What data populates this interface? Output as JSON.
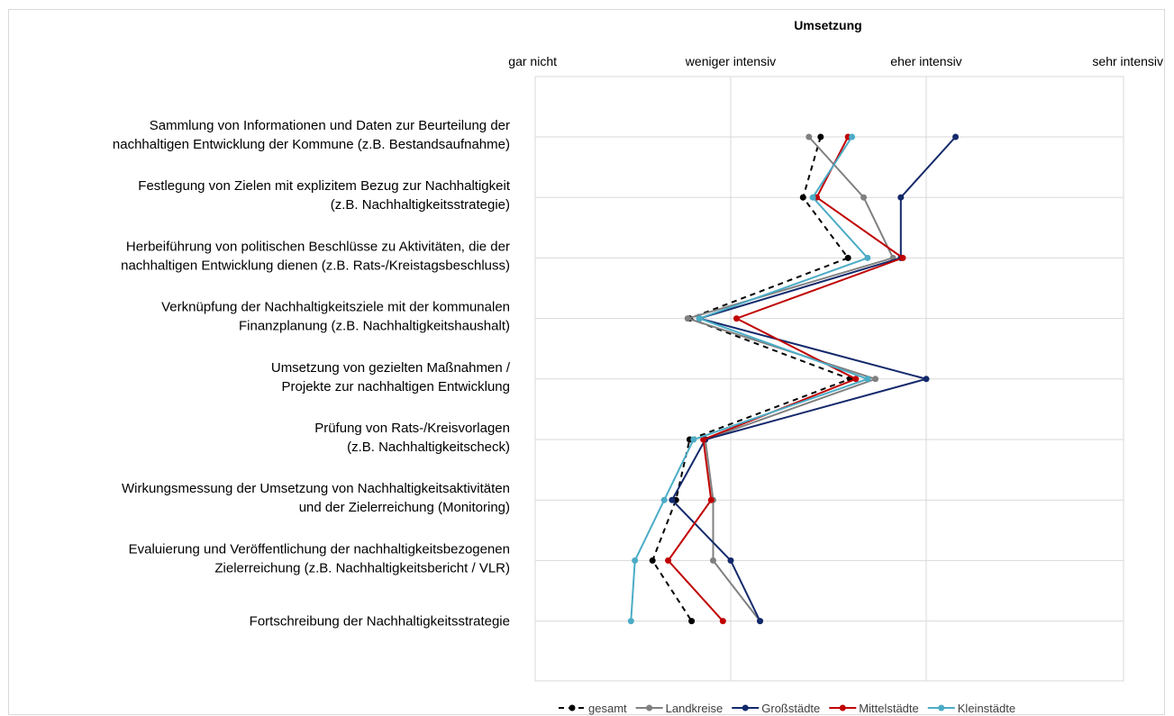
{
  "chart_data": {
    "type": "line",
    "title": "",
    "axis_title": "Umsetzung",
    "x_ticks": [
      "gar nicht",
      "weniger intensiv",
      "eher intensiv",
      "sehr intensiv"
    ],
    "xlim": [
      1,
      4
    ],
    "grid": true,
    "legend_position": "bottom",
    "categories": [
      [
        "Sammlung von Informationen und Daten zur Beurteilung der",
        "nachhaltigen Entwicklung der Kommune (z.B. Bestandsaufnahme)"
      ],
      [
        "Festlegung von Zielen mit explizitem Bezug zur Nachhaltigkeit",
        "(z.B. Nachhaltigkeitsstrategie)"
      ],
      [
        "Herbeiführung von politischen Beschlüsse zu Aktivitäten, die der",
        "nachhaltigen Entwicklung dienen (z.B. Rats-/Kreistagsbeschluss)"
      ],
      [
        "Verknüpfung der Nachhaltigkeitsziele mit der kommunalen",
        "Finanzplanung (z.B. Nachhaltigkeitshaushalt)"
      ],
      [
        "Umsetzung von gezielten Maßnahmen /",
        "Projekte zur nachhaltigen Entwicklung"
      ],
      [
        "Prüfung von Rats-/Kreisvorlagen",
        "(z.B. Nachhaltigkeitscheck)"
      ],
      [
        "Wirkungsmessung der Umsetzung von Nachhaltigkeitsaktivitäten",
        "und der Zielerreichung (Monitoring)"
      ],
      [
        "Evaluierung und Veröffentlichung der nachhaltigkeitsbezogenen",
        "Zielerreichung  (z.B. Nachhaltigkeitsbericht / VLR)"
      ],
      [
        "Fortschreibung der Nachhaltigkeitsstrategie"
      ]
    ],
    "series": [
      {
        "name": "gesamt",
        "color": "#000000",
        "dashed": true,
        "values": [
          2.46,
          2.37,
          2.6,
          1.79,
          2.61,
          1.79,
          1.72,
          1.6,
          1.8
        ]
      },
      {
        "name": "Landkreise",
        "color": "#808080",
        "dashed": false,
        "values": [
          2.4,
          2.68,
          2.83,
          1.78,
          2.74,
          1.87,
          1.91,
          1.91,
          2.15
        ]
      },
      {
        "name": "Großstädte",
        "color": "#13296b",
        "dashed": false,
        "values": [
          3.15,
          2.87,
          2.87,
          1.84,
          3.0,
          1.87,
          1.7,
          2.0,
          2.15
        ]
      },
      {
        "name": "Mittelstädte",
        "color": "#c00000",
        "dashed": false,
        "values": [
          2.6,
          2.44,
          2.88,
          2.03,
          2.64,
          1.86,
          1.9,
          1.68,
          1.96
        ]
      },
      {
        "name": "Kleinstädte",
        "color": "#4bacc6",
        "dashed": false,
        "values": [
          2.62,
          2.42,
          2.7,
          1.84,
          2.7,
          1.81,
          1.66,
          1.51,
          1.49
        ]
      }
    ]
  }
}
